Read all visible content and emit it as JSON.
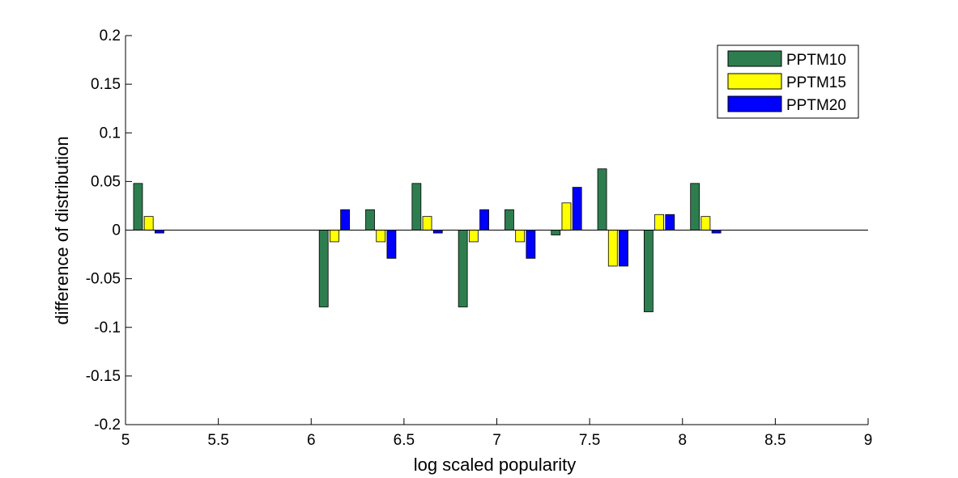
{
  "chart_data": {
    "type": "bar",
    "xlabel": "log scaled popularity",
    "ylabel": "difference of distribution",
    "xlim": [
      5,
      9
    ],
    "ylim": [
      -0.2,
      0.2
    ],
    "x_ticks": [
      "5",
      "5.5",
      "6",
      "6.5",
      "7",
      "7.5",
      "8",
      "8.5",
      "9"
    ],
    "y_ticks": [
      "0.2",
      "0.15",
      "0.1",
      "0.05",
      "0",
      "-0.05",
      "-0.1",
      "-0.15",
      "-0.2"
    ],
    "x": [
      5.125,
      6.125,
      6.375,
      6.625,
      6.875,
      7.125,
      7.375,
      7.625,
      7.875,
      8.125
    ],
    "legend_position": "top-right",
    "series": [
      {
        "name": "PPTM10",
        "color": "#2e7d4f",
        "values": [
          0.048,
          -0.079,
          0.021,
          0.048,
          -0.079,
          0.021,
          -0.005,
          0.063,
          -0.084,
          0.048
        ]
      },
      {
        "name": "PPTM15",
        "color": "#ffff00",
        "values": [
          0.014,
          -0.012,
          -0.012,
          0.014,
          -0.012,
          -0.012,
          0.028,
          -0.037,
          0.016,
          0.014
        ]
      },
      {
        "name": "PPTM20",
        "color": "#0000ff",
        "values": [
          -0.003,
          0.021,
          -0.029,
          -0.003,
          0.021,
          -0.029,
          0.044,
          -0.037,
          0.016,
          -0.003
        ]
      }
    ]
  }
}
